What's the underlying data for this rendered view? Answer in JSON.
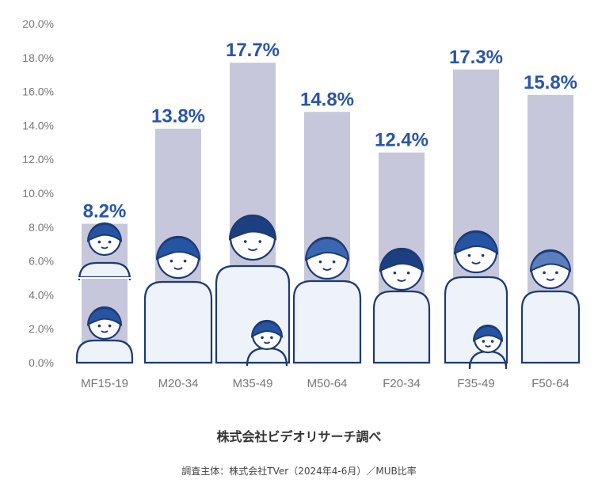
{
  "chart_data": {
    "type": "bar",
    "categories": [
      "MF15-19",
      "M20-34",
      "M35-49",
      "M50-64",
      "F20-34",
      "F35-49",
      "F50-64"
    ],
    "values": [
      8.2,
      13.8,
      17.7,
      14.8,
      12.4,
      17.3,
      15.8
    ],
    "value_labels": [
      "8.2%",
      "13.8%",
      "17.7%",
      "14.8%",
      "12.4%",
      "17.3%",
      "15.8%"
    ],
    "ylim": [
      0,
      20
    ],
    "yticks": [
      "0.0%",
      "2.0%",
      "4.0%",
      "6.0%",
      "8.0%",
      "10.0%",
      "12.0%",
      "14.0%",
      "16.0%",
      "18.0%",
      "20.0%"
    ],
    "grid": false,
    "colors": {
      "bar": "#c6c7da",
      "value_label": "#2a55a8",
      "tick": "#777777"
    }
  },
  "source": {
    "title": "株式会社ビデオリサーチ調べ",
    "note": "調査主体：株式会社TVer（2024年4-6月）／MUB比率"
  }
}
